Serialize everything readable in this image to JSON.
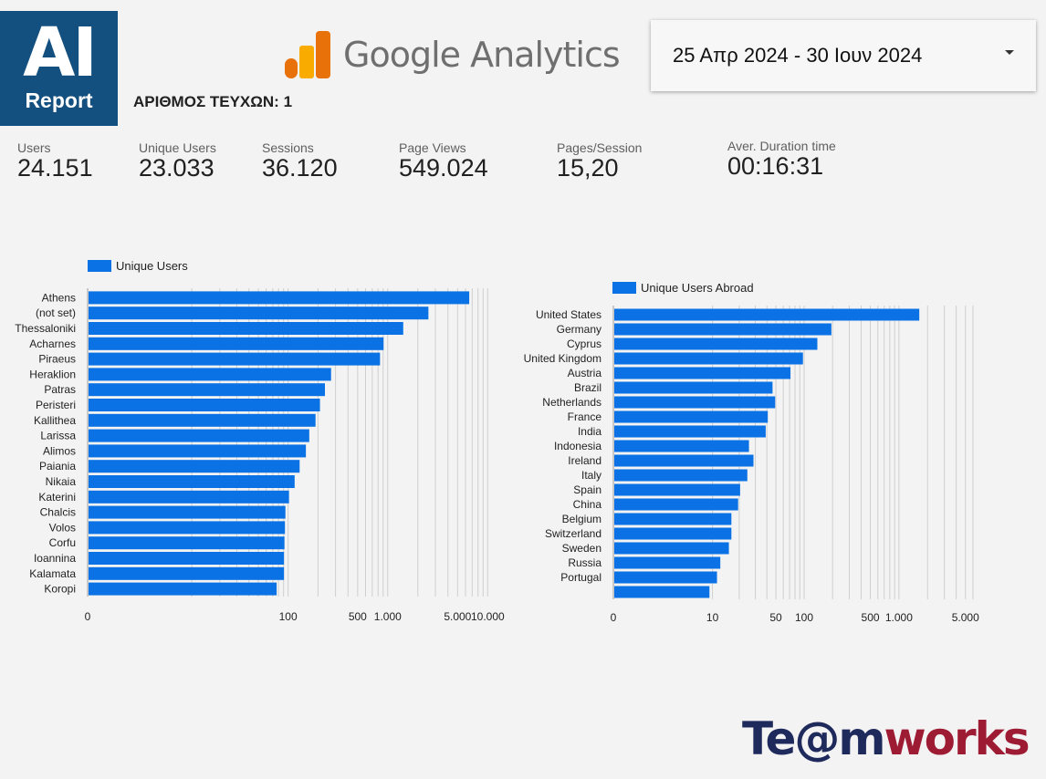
{
  "branding": {
    "logo_main": "AI",
    "logo_sub": "Report",
    "analytics_title": "Google Analytics",
    "partner_part1": "Te@m",
    "partner_part2": "works"
  },
  "header": {
    "issues_label": "ΑΡΙΘΜΟΣ ΤΕΥΧΩΝ: 1",
    "date_range": "25 Απρ 2024 - 30 Ιουν 2024"
  },
  "kpis": [
    {
      "label": "Users",
      "value": "24.151"
    },
    {
      "label": "Unique Users",
      "value": "23.033"
    },
    {
      "label": "Sessions",
      "value": "36.120"
    },
    {
      "label": "Page Views",
      "value": "549.024"
    },
    {
      "label": "Pages/Session",
      "value": "15,20"
    },
    {
      "label": "Aver. Duration time",
      "value": "00:16:31"
    }
  ],
  "colors": {
    "bar": "#0b72e6",
    "ga_dark": "#e8710a",
    "ga_light": "#f9ab00",
    "grid": "#cfcfcf"
  },
  "chart_data": [
    {
      "type": "bar",
      "orientation": "horizontal",
      "scale": "log",
      "series": [
        {
          "name": "Unique Users",
          "values": [
            6400,
            2500,
            1400,
            890,
            820,
            265,
            230,
            205,
            185,
            160,
            148,
            128,
            114,
            100,
            92,
            91,
            90,
            89,
            89,
            75
          ]
        }
      ],
      "categories": [
        "Athens",
        "(not set)",
        "Thessaloniki",
        "Acharnes",
        "Piraeus",
        "Heraklion",
        "Patras",
        "Peristeri",
        "Kallithea",
        "Larissa",
        "Alimos",
        "Paiania",
        "Nikaia",
        "Katerini",
        "Chalcis",
        "Volos",
        "Corfu",
        "Ioannina",
        "Kalamata",
        "Koropi"
      ],
      "xlim": [
        0,
        12000
      ],
      "xticks": [
        0,
        100,
        500,
        1000,
        5000,
        10000
      ],
      "xtick_labels": [
        "0",
        "100",
        "500",
        "1.000",
        "5.000",
        "10.000"
      ],
      "grid": true,
      "legend": "top-left"
    },
    {
      "type": "bar",
      "orientation": "horizontal",
      "scale": "log",
      "series": [
        {
          "name": "Unique Users Abroad",
          "values": [
            1600,
            190,
            135,
            95,
            70,
            45,
            48,
            40,
            38,
            25,
            28,
            24,
            20,
            19,
            16,
            16,
            15,
            12,
            11,
            9
          ]
        }
      ],
      "categories": [
        "United States",
        "Germany",
        "Cyprus",
        "United Kingdom",
        "Austria",
        "Brazil",
        "Netherlands",
        "France",
        "India",
        "Indonesia",
        "Ireland",
        "Italy",
        "Spain",
        "China",
        "Belgium",
        "Switzerland",
        "Sweden",
        "Russia",
        "Portugal",
        ""
      ],
      "xlim": [
        0,
        6000
      ],
      "xticks": [
        0,
        10,
        50,
        100,
        500,
        1000,
        5000
      ],
      "xtick_labels": [
        "0",
        "10",
        "50",
        "100",
        "500",
        "1.000",
        "5.000"
      ],
      "grid": true,
      "legend": "top-left"
    }
  ]
}
